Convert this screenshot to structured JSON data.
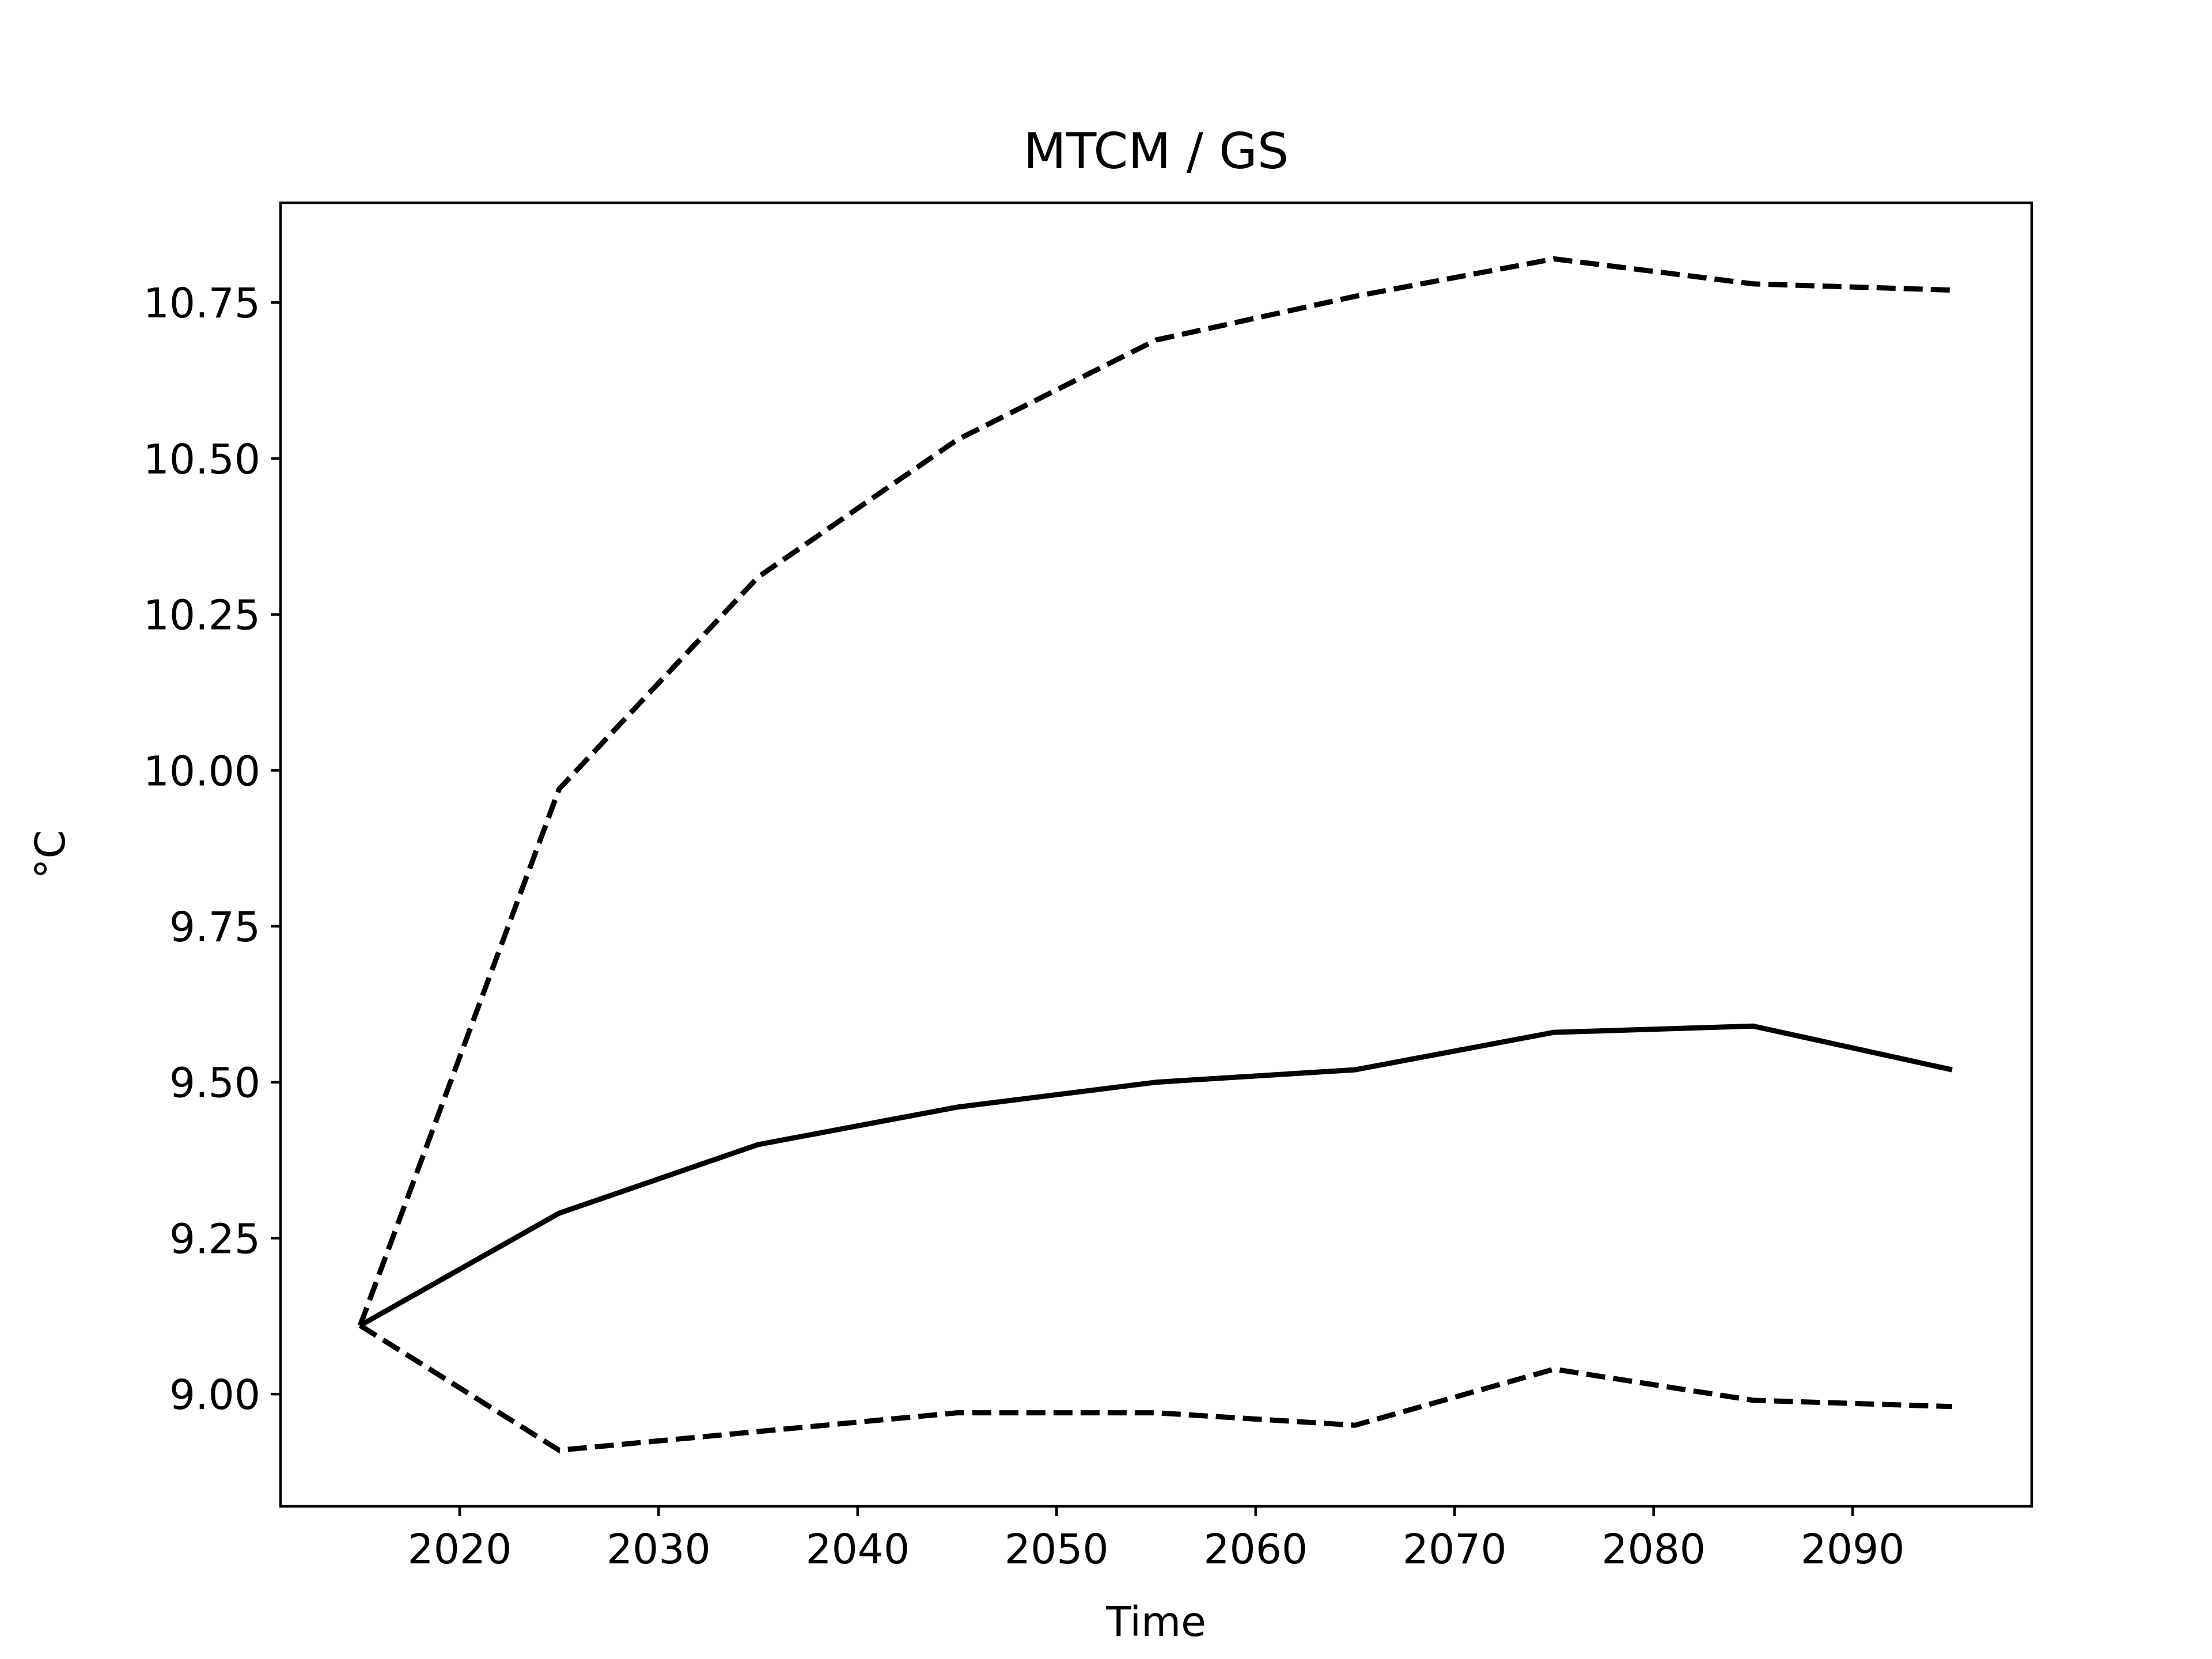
{
  "chart_data": {
    "type": "line",
    "title": "MTCM / GS",
    "xlabel": "Time",
    "ylabel": "°C",
    "xlim": [
      2011,
      2099
    ],
    "ylim": [
      8.82,
      10.91
    ],
    "xticks": [
      2020,
      2030,
      2040,
      2050,
      2060,
      2070,
      2080,
      2090
    ],
    "yticks": [
      9.0,
      9.25,
      9.5,
      9.75,
      10.0,
      10.25,
      10.5,
      10.75
    ],
    "ytick_labels": [
      "9.00",
      "9.25",
      "9.50",
      "9.75",
      "10.00",
      "10.25",
      "10.50",
      "10.75"
    ],
    "grid": false,
    "legend": "none",
    "x": [
      2015,
      2025,
      2035,
      2045,
      2055,
      2065,
      2075,
      2085,
      2095
    ],
    "series": [
      {
        "style": "solid",
        "color": "#000000",
        "values": [
          9.11,
          9.29,
          9.4,
          9.46,
          9.5,
          9.52,
          9.58,
          9.59,
          9.52
        ]
      },
      {
        "style": "dashed",
        "color": "#000000",
        "values": [
          9.11,
          9.97,
          10.31,
          10.53,
          10.69,
          10.76,
          10.82,
          10.78,
          10.77
        ]
      },
      {
        "style": "dashed",
        "color": "#000000",
        "values": [
          9.11,
          8.91,
          8.94,
          8.97,
          8.97,
          8.95,
          9.04,
          8.99,
          8.98
        ]
      }
    ]
  }
}
